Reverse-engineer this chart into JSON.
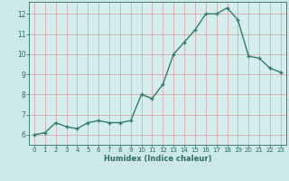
{
  "x": [
    0,
    1,
    2,
    3,
    4,
    5,
    6,
    7,
    8,
    9,
    10,
    11,
    12,
    13,
    14,
    15,
    16,
    17,
    18,
    19,
    20,
    21,
    22,
    23
  ],
  "y": [
    6.0,
    6.1,
    6.6,
    6.4,
    6.3,
    6.6,
    6.7,
    6.6,
    6.6,
    6.7,
    8.0,
    7.8,
    8.5,
    10.0,
    10.6,
    11.2,
    12.0,
    12.0,
    12.3,
    11.7,
    9.9,
    9.8,
    9.3,
    9.1
  ],
  "xlabel": "Humidex (Indice chaleur)",
  "xlim": [
    -0.5,
    23.5
  ],
  "ylim": [
    5.5,
    12.6
  ],
  "yticks": [
    6,
    7,
    8,
    9,
    10,
    11,
    12
  ],
  "xticks": [
    0,
    1,
    2,
    3,
    4,
    5,
    6,
    7,
    8,
    9,
    10,
    11,
    12,
    13,
    14,
    15,
    16,
    17,
    18,
    19,
    20,
    21,
    22,
    23
  ],
  "line_color": "#2e7d6e",
  "marker_color": "#2e7d6e",
  "bg_color": "#cce8e8",
  "plot_bg_color": "#d6eded",
  "grid_color_v": "#d4a0a0",
  "grid_color_h": "#d4a0a0",
  "tick_label_color": "#2e6e60",
  "axis_label_color": "#2e6e60"
}
